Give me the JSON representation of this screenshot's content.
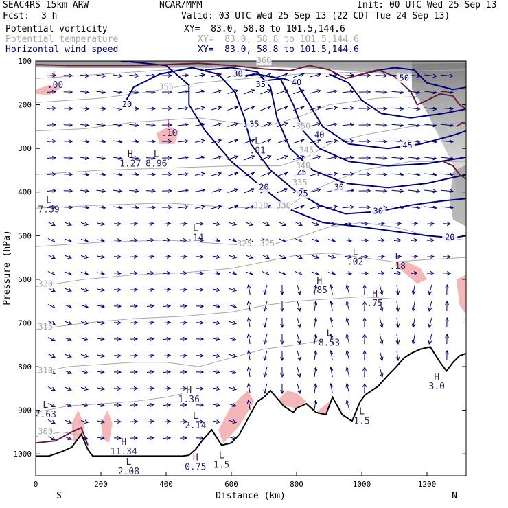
{
  "header": {
    "model": "SEAC4RS 15km ARW",
    "source": "NCAR/MMM",
    "init": "Init: 00 UTC Wed 25 Sep 13",
    "fcst_label": "Fcst:",
    "fcst_value": "3 h",
    "valid": "Valid: 03 UTC Wed 25 Sep 13 (22 CDT Tue 24 Sep 13)"
  },
  "fields": [
    {
      "name": "Potential vorticity",
      "xy": "XY=  83.0, 58.8 to 101.5,144.6",
      "color": "#000000"
    },
    {
      "name": "Potential temperature",
      "xy": "XY=  83.0, 58.8 to 101.5,144.6",
      "color": "#a8a8a8"
    },
    {
      "name": "Horizontal wind speed",
      "xy": "XY=  83.0, 58.8 to 101.5,144.6",
      "color": "#00007a"
    }
  ],
  "chart_data": {
    "type": "cross-section",
    "xlabel": "Distance (km)",
    "ylabel": "Pressure (hPa)",
    "xlim": [
      0,
      1320
    ],
    "ylim": [
      1050,
      100
    ],
    "x_ticks": [
      "0",
      "200",
      "400",
      "600",
      "800",
      "1000",
      "1200"
    ],
    "y_ticks": [
      "100",
      "200",
      "300",
      "400",
      "500",
      "600",
      "700",
      "800",
      "900",
      "1000"
    ],
    "end_labels": {
      "left": "S",
      "right": "N"
    },
    "colors": {
      "wind_contour": "#00007a",
      "theta_contour": "#a8a8a8",
      "pv_contour": "#6b1a3c",
      "shading_high": "#f4b6b6",
      "terrain": "#000000"
    },
    "terrain": {
      "x": [
        0,
        40,
        80,
        110,
        140,
        160,
        175,
        200,
        250,
        300,
        350,
        400,
        450,
        470,
        490,
        510,
        540,
        570,
        600,
        625,
        650,
        680,
        700,
        720,
        760,
        790,
        800,
        830,
        860,
        890,
        910,
        940,
        970,
        995,
        1010,
        1030,
        1050,
        1080,
        1100,
        1130,
        1150,
        1180,
        1210,
        1240,
        1260,
        1280,
        1300,
        1320
      ],
      "p": [
        1005,
        1005,
        995,
        985,
        955,
        990,
        1005,
        1005,
        1005,
        1005,
        1005,
        1005,
        1005,
        1003,
        990,
        970,
        945,
        980,
        975,
        955,
        920,
        880,
        870,
        855,
        890,
        905,
        895,
        885,
        905,
        910,
        870,
        910,
        925,
        880,
        865,
        855,
        845,
        820,
        805,
        780,
        770,
        760,
        755,
        790,
        810,
        790,
        775,
        770
      ]
    },
    "wind_speed_contours": [
      {
        "value": 20,
        "label_pos": [
          [
            280,
            205
          ],
          [
            700,
            395
          ],
          [
            1270,
            510
          ]
        ]
      },
      {
        "value": 25,
        "label_pos": [
          [
            815,
            360
          ],
          [
            820,
            410
          ]
        ]
      },
      {
        "value": 30,
        "label_pos": [
          [
            620,
            135
          ],
          [
            930,
            395
          ],
          [
            1050,
            450
          ]
        ]
      },
      {
        "value": 35,
        "label_pos": [
          [
            690,
            160
          ],
          [
            670,
            250
          ]
        ]
      },
      {
        "value": 40,
        "label_pos": [
          [
            800,
            155
          ],
          [
            870,
            275
          ]
        ]
      },
      {
        "value": 45,
        "label_pos": [
          [
            1140,
            300
          ]
        ]
      },
      {
        "value": 50,
        "label_pos": [
          [
            1130,
            145
          ]
        ]
      }
    ],
    "theta_contours": [
      {
        "value": 300,
        "label_pos": [
          [
            30,
            955
          ]
        ]
      },
      {
        "value": 310,
        "label_pos": [
          [
            30,
            815
          ]
        ]
      },
      {
        "value": 315,
        "label_pos": [
          [
            30,
            715
          ]
        ]
      },
      {
        "value": 320,
        "label_pos": [
          [
            30,
            617
          ]
        ]
      },
      {
        "value": 325,
        "label_pos": [
          [
            640,
            525
          ],
          [
            710,
            525
          ]
        ]
      },
      {
        "value": 330,
        "label_pos": [
          [
            690,
            437
          ],
          [
            760,
            437
          ]
        ]
      },
      {
        "value": 335,
        "label_pos": [
          [
            810,
            385
          ]
        ]
      },
      {
        "value": 340,
        "label_pos": [
          [
            820,
            345
          ]
        ]
      },
      {
        "value": 345,
        "label_pos": [
          [
            830,
            310
          ]
        ]
      },
      {
        "value": 350,
        "label_pos": [
          [
            820,
            255
          ]
        ]
      },
      {
        "value": 355,
        "label_pos": [
          [
            400,
            165
          ]
        ]
      },
      {
        "value": 360,
        "label_pos": [
          [
            700,
            105
          ]
        ]
      }
    ],
    "extrema": [
      {
        "type": "L",
        "value": ".00",
        "x": 60,
        "p": 160
      },
      {
        "type": "L",
        "value": ".10",
        "x": 410,
        "p": 270
      },
      {
        "type": "H",
        "value": "1.27",
        "x": 290,
        "p": 340
      },
      {
        "type": "L",
        "value": "8.96",
        "x": 370,
        "p": 340
      },
      {
        "type": "L",
        "value": ".01",
        "x": 680,
        "p": 310
      },
      {
        "type": "L",
        "value": "7.39",
        "x": 40,
        "p": 445
      },
      {
        "type": "L",
        "value": ".14",
        "x": 490,
        "p": 510
      },
      {
        "type": "L",
        "value": ".02",
        "x": 980,
        "p": 565
      },
      {
        "type": "L",
        "value": ".18",
        "x": 1110,
        "p": 575
      },
      {
        "type": "H",
        "value": ".85",
        "x": 870,
        "p": 630
      },
      {
        "type": "H",
        "value": ".75",
        "x": 1040,
        "p": 660
      },
      {
        "type": "L",
        "value": "8.53",
        "x": 900,
        "p": 750
      },
      {
        "type": "H",
        "value": "3.0",
        "x": 1230,
        "p": 850
      },
      {
        "type": "H",
        "value": "1.36",
        "x": 470,
        "p": 880
      },
      {
        "type": "L",
        "value": "2.63",
        "x": 30,
        "p": 915
      },
      {
        "type": "L",
        "value": "2.14",
        "x": 490,
        "p": 940
      },
      {
        "type": "H",
        "value": "11.34",
        "x": 270,
        "p": 1000
      },
      {
        "type": "L",
        "value": "1.5",
        "x": 1000,
        "p": 930
      },
      {
        "type": "L",
        "value": "2.08",
        "x": 285,
        "p": 1045
      },
      {
        "type": "H",
        "value": "0.75",
        "x": 490,
        "p": 1035
      },
      {
        "type": "L",
        "value": "1.5",
        "x": 570,
        "p": 1030
      }
    ]
  }
}
